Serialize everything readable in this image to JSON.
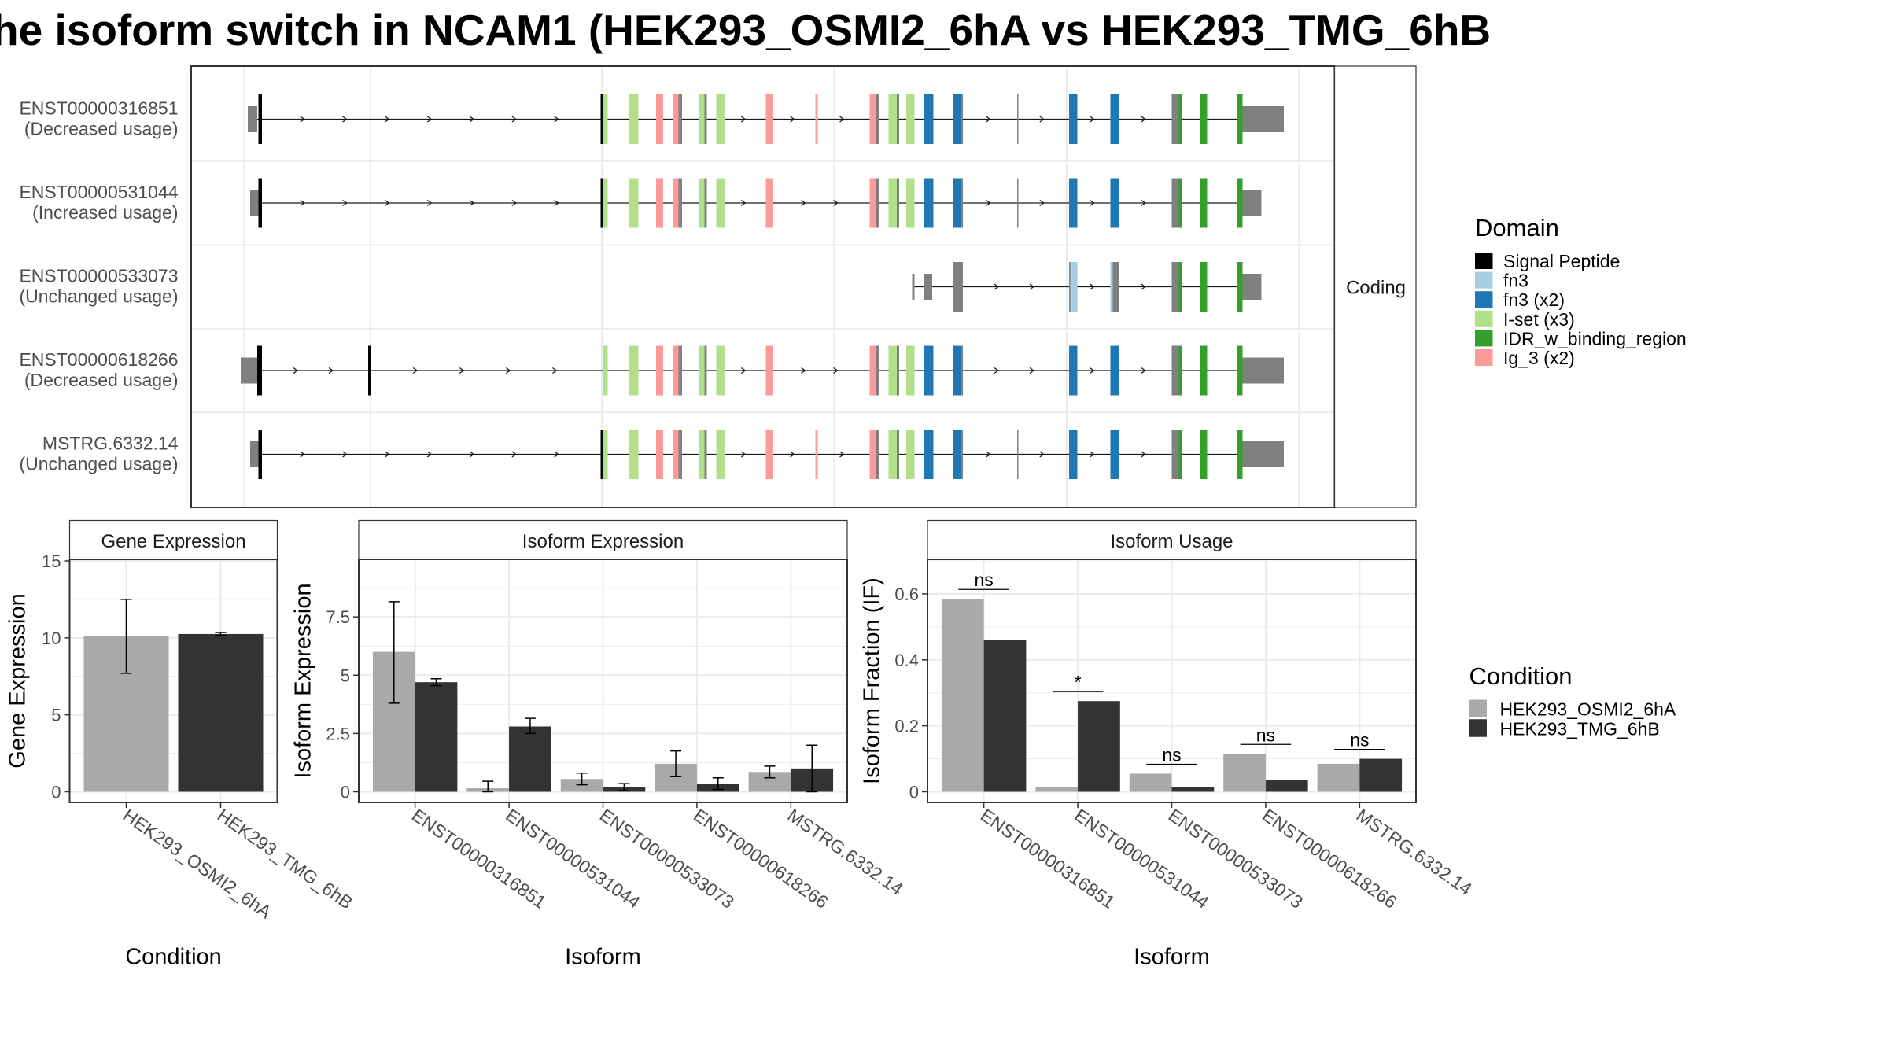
{
  "title": "he isoform switch in NCAM1 (HEK293_OSMI2_6hA vs HEK293_TMG_6hB",
  "colors": {
    "Signal Peptide": "#000000",
    "fn3": "#a6cee3",
    "fn3 (x2)": "#1f78b4",
    "I-set (x3)": "#b2df8a",
    "IDR_w_binding_region": "#33a02c",
    "Ig_3 (x2)": "#fb9a99",
    "none": "#808080",
    "HEK293_OSMI2_6hA": "#a9a9a9",
    "HEK293_TMG_6hB": "#333333"
  },
  "structure": {
    "strip_label": "Coding",
    "transcripts": [
      {
        "id": "ENST00000316851",
        "label": "ENST00000316851",
        "sublabel": "(Decreased usage)",
        "start": 215,
        "end": 1088
      },
      {
        "id": "ENST00000531044",
        "label": "ENST00000531044",
        "sublabel": "(Increased usage)",
        "start": 215,
        "end": 1069
      },
      {
        "id": "ENST00000533073",
        "label": "ENST00000533073",
        "sublabel": "(Unchanged usage)",
        "start": 773,
        "end": 1069
      },
      {
        "id": "ENST00000618266",
        "label": "ENST00000618266",
        "sublabel": "(Decreased usage)",
        "start": 207,
        "end": 1088
      },
      {
        "id": "MSTRG.6332.14",
        "label": "MSTRG.6332.14",
        "sublabel": "(Unchanged usage)",
        "start": 215,
        "end": 1088
      }
    ],
    "exons": [
      [
        [
          210,
          218,
          "none",
          0.55
        ],
        [
          219,
          222,
          "Signal Peptide",
          1
        ],
        [
          509,
          511,
          "Signal Peptide",
          1
        ],
        [
          511,
          515,
          "I-set (x3)",
          1
        ],
        [
          533,
          541,
          "I-set (x3)",
          1
        ],
        [
          556,
          562,
          "Ig_3 (x2)",
          1
        ],
        [
          570,
          575,
          "Ig_3 (x2)",
          1
        ],
        [
          575,
          578,
          "none",
          1
        ],
        [
          592,
          597,
          "I-set (x3)",
          1
        ],
        [
          597,
          599,
          "none",
          1
        ],
        [
          607,
          614,
          "I-set (x3)",
          1
        ],
        [
          649,
          655,
          "Ig_3 (x2)",
          1
        ],
        [
          691,
          693,
          "Ig_3 (x2)",
          1
        ],
        [
          737,
          742,
          "Ig_3 (x2)",
          1
        ],
        [
          742,
          745,
          "none",
          1
        ],
        [
          753,
          760,
          "I-set (x3)",
          1
        ],
        [
          760,
          762,
          "none",
          1
        ],
        [
          768,
          775,
          "I-set (x3)",
          1
        ],
        [
          783,
          791,
          "fn3 (x2)",
          1
        ],
        [
          808,
          814,
          "fn3 (x2)",
          1
        ],
        [
          814,
          816,
          "none",
          1
        ],
        [
          862,
          863,
          "none",
          1
        ],
        [
          906,
          913,
          "fn3 (x2)",
          1
        ],
        [
          941,
          948,
          "fn3 (x2)",
          1
        ],
        [
          993,
          999,
          "none",
          1
        ],
        [
          999,
          1002,
          "IDR_w_binding_region",
          1
        ],
        [
          1017,
          1023,
          "IDR_w_binding_region",
          1
        ],
        [
          1048,
          1053,
          "IDR_w_binding_region",
          1
        ],
        [
          1053,
          1088,
          "none",
          0.55
        ]
      ],
      [
        [
          212,
          219,
          "none",
          0.55
        ],
        [
          219,
          222,
          "Signal Peptide",
          1
        ],
        [
          509,
          511,
          "Signal Peptide",
          1
        ],
        [
          511,
          515,
          "I-set (x3)",
          1
        ],
        [
          533,
          541,
          "I-set (x3)",
          1
        ],
        [
          556,
          562,
          "Ig_3 (x2)",
          1
        ],
        [
          570,
          575,
          "Ig_3 (x2)",
          1
        ],
        [
          575,
          578,
          "none",
          1
        ],
        [
          592,
          597,
          "I-set (x3)",
          1
        ],
        [
          597,
          599,
          "none",
          1
        ],
        [
          607,
          614,
          "I-set (x3)",
          1
        ],
        [
          649,
          655,
          "Ig_3 (x2)",
          1
        ],
        [
          737,
          742,
          "Ig_3 (x2)",
          1
        ],
        [
          742,
          745,
          "none",
          1
        ],
        [
          753,
          760,
          "I-set (x3)",
          1
        ],
        [
          760,
          762,
          "none",
          1
        ],
        [
          768,
          775,
          "I-set (x3)",
          1
        ],
        [
          783,
          791,
          "fn3 (x2)",
          1
        ],
        [
          808,
          814,
          "fn3 (x2)",
          1
        ],
        [
          814,
          816,
          "none",
          1
        ],
        [
          862,
          863,
          "none",
          1
        ],
        [
          906,
          913,
          "fn3 (x2)",
          1
        ],
        [
          941,
          948,
          "fn3 (x2)",
          1
        ],
        [
          993,
          999,
          "none",
          1
        ],
        [
          999,
          1002,
          "IDR_w_binding_region",
          1
        ],
        [
          1017,
          1023,
          "IDR_w_binding_region",
          1
        ],
        [
          1048,
          1053,
          "IDR_w_binding_region",
          1
        ],
        [
          1053,
          1069,
          "none",
          0.55
        ]
      ],
      [
        [
          773,
          775,
          "none",
          0.55
        ],
        [
          783,
          790,
          "none",
          0.55
        ],
        [
          808,
          816,
          "none",
          1
        ],
        [
          906,
          907,
          "none",
          1
        ],
        [
          907,
          913,
          "fn3",
          1
        ],
        [
          941,
          943,
          "fn3",
          1
        ],
        [
          943,
          948,
          "none",
          1
        ],
        [
          993,
          999,
          "none",
          1
        ],
        [
          999,
          1002,
          "IDR_w_binding_region",
          1
        ],
        [
          1017,
          1023,
          "IDR_w_binding_region",
          1
        ],
        [
          1048,
          1053,
          "IDR_w_binding_region",
          1
        ],
        [
          1053,
          1069,
          "none",
          0.55
        ]
      ],
      [
        [
          204,
          218,
          "none",
          0.55
        ],
        [
          218,
          222,
          "Signal Peptide",
          1
        ],
        [
          312,
          314,
          "Signal Peptide",
          1
        ],
        [
          511,
          515,
          "I-set (x3)",
          1
        ],
        [
          533,
          541,
          "I-set (x3)",
          1
        ],
        [
          556,
          562,
          "Ig_3 (x2)",
          1
        ],
        [
          570,
          575,
          "Ig_3 (x2)",
          1
        ],
        [
          575,
          578,
          "none",
          1
        ],
        [
          592,
          597,
          "I-set (x3)",
          1
        ],
        [
          597,
          599,
          "none",
          1
        ],
        [
          607,
          614,
          "I-set (x3)",
          1
        ],
        [
          649,
          655,
          "Ig_3 (x2)",
          1
        ],
        [
          737,
          742,
          "Ig_3 (x2)",
          1
        ],
        [
          742,
          745,
          "none",
          1
        ],
        [
          753,
          760,
          "I-set (x3)",
          1
        ],
        [
          760,
          762,
          "none",
          1
        ],
        [
          768,
          775,
          "I-set (x3)",
          1
        ],
        [
          783,
          791,
          "fn3 (x2)",
          1
        ],
        [
          808,
          814,
          "fn3 (x2)",
          1
        ],
        [
          814,
          816,
          "none",
          1
        ],
        [
          906,
          913,
          "fn3 (x2)",
          1
        ],
        [
          941,
          948,
          "fn3 (x2)",
          1
        ],
        [
          993,
          999,
          "none",
          1
        ],
        [
          999,
          1002,
          "IDR_w_binding_region",
          1
        ],
        [
          1017,
          1023,
          "IDR_w_binding_region",
          1
        ],
        [
          1048,
          1053,
          "IDR_w_binding_region",
          1
        ],
        [
          1053,
          1088,
          "none",
          0.55
        ]
      ],
      [
        [
          212,
          219,
          "none",
          0.55
        ],
        [
          219,
          222,
          "Signal Peptide",
          1
        ],
        [
          509,
          511,
          "Signal Peptide",
          1
        ],
        [
          511,
          515,
          "I-set (x3)",
          1
        ],
        [
          533,
          541,
          "I-set (x3)",
          1
        ],
        [
          556,
          562,
          "Ig_3 (x2)",
          1
        ],
        [
          570,
          575,
          "Ig_3 (x2)",
          1
        ],
        [
          575,
          578,
          "none",
          1
        ],
        [
          592,
          597,
          "I-set (x3)",
          1
        ],
        [
          597,
          599,
          "none",
          1
        ],
        [
          607,
          614,
          "I-set (x3)",
          1
        ],
        [
          649,
          655,
          "Ig_3 (x2)",
          1
        ],
        [
          691,
          693,
          "Ig_3 (x2)",
          1
        ],
        [
          737,
          742,
          "Ig_3 (x2)",
          1
        ],
        [
          742,
          745,
          "none",
          1
        ],
        [
          753,
          760,
          "I-set (x3)",
          1
        ],
        [
          760,
          762,
          "none",
          1
        ],
        [
          768,
          775,
          "I-set (x3)",
          1
        ],
        [
          783,
          791,
          "fn3 (x2)",
          1
        ],
        [
          808,
          814,
          "fn3 (x2)",
          1
        ],
        [
          814,
          816,
          "none",
          1
        ],
        [
          862,
          863,
          "none",
          1
        ],
        [
          906,
          913,
          "fn3 (x2)",
          1
        ],
        [
          941,
          948,
          "fn3 (x2)",
          1
        ],
        [
          993,
          999,
          "none",
          1
        ],
        [
          999,
          1002,
          "IDR_w_binding_region",
          1
        ],
        [
          1017,
          1023,
          "IDR_w_binding_region",
          1
        ],
        [
          1048,
          1053,
          "IDR_w_binding_region",
          1
        ],
        [
          1053,
          1088,
          "none",
          0.55
        ]
      ]
    ]
  },
  "legend_domain": {
    "title": "Domain",
    "items": [
      "Signal Peptide",
      "fn3",
      "fn3 (x2)",
      "I-set (x3)",
      "IDR_w_binding_region",
      "Ig_3 (x2)"
    ]
  },
  "legend_condition": {
    "title": "Condition",
    "items": [
      "HEK293_OSMI2_6hA",
      "HEK293_TMG_6hB"
    ]
  },
  "chart_data": [
    {
      "type": "bar",
      "title": "Gene Expression",
      "xlabel": "Condition",
      "ylabel": "Gene Expression",
      "ylim": [
        0,
        15
      ],
      "yticks": [
        0,
        5,
        10,
        15
      ],
      "categories": [
        "HEK293_OSMI2_6hA",
        "HEK293_TMG_6hB"
      ],
      "values": [
        10.1,
        10.25
      ],
      "err_low": [
        7.7,
        10.15
      ],
      "err_high": [
        12.5,
        10.35
      ]
    },
    {
      "type": "bar",
      "title": "Isoform Expression",
      "xlabel": "Isoform",
      "ylabel": "Isoform Expression",
      "ylim": [
        0,
        9.9
      ],
      "yticks": [
        0.0,
        2.5,
        5.0,
        7.5
      ],
      "categories": [
        "ENST00000316851",
        "ENST00000531044",
        "ENST00000533073",
        "ENST00000618266",
        "MSTRG.6332.14"
      ],
      "series": [
        {
          "name": "HEK293_OSMI2_6hA",
          "values": [
            6.0,
            0.15,
            0.55,
            1.2,
            0.85
          ],
          "err_low": [
            3.8,
            0.0,
            0.3,
            0.65,
            0.6
          ],
          "err_high": [
            8.15,
            0.45,
            0.8,
            1.75,
            1.1
          ]
        },
        {
          "name": "HEK293_TMG_6hB",
          "values": [
            4.7,
            2.8,
            0.2,
            0.35,
            1.0
          ],
          "err_low": [
            4.55,
            2.5,
            0.05,
            0.1,
            0.0
          ],
          "err_high": [
            4.85,
            3.15,
            0.35,
            0.6,
            2.0
          ]
        }
      ]
    },
    {
      "type": "bar",
      "title": "Isoform Usage",
      "xlabel": "Isoform",
      "ylabel": "Isoform Fraction (IF)",
      "ylim": [
        0,
        0.7
      ],
      "yticks": [
        0.0,
        0.2,
        0.4,
        0.6
      ],
      "categories": [
        "ENST00000316851",
        "ENST00000531044",
        "ENST00000533073",
        "ENST00000618266",
        "MSTRG.6332.14"
      ],
      "series": [
        {
          "name": "HEK293_OSMI2_6hA",
          "values": [
            0.585,
            0.015,
            0.055,
            0.115,
            0.085
          ]
        },
        {
          "name": "HEK293_TMG_6hB",
          "values": [
            0.46,
            0.275,
            0.015,
            0.035,
            0.1
          ]
        }
      ],
      "significance": [
        "ns",
        "*",
        "ns",
        "ns",
        "ns"
      ]
    }
  ]
}
